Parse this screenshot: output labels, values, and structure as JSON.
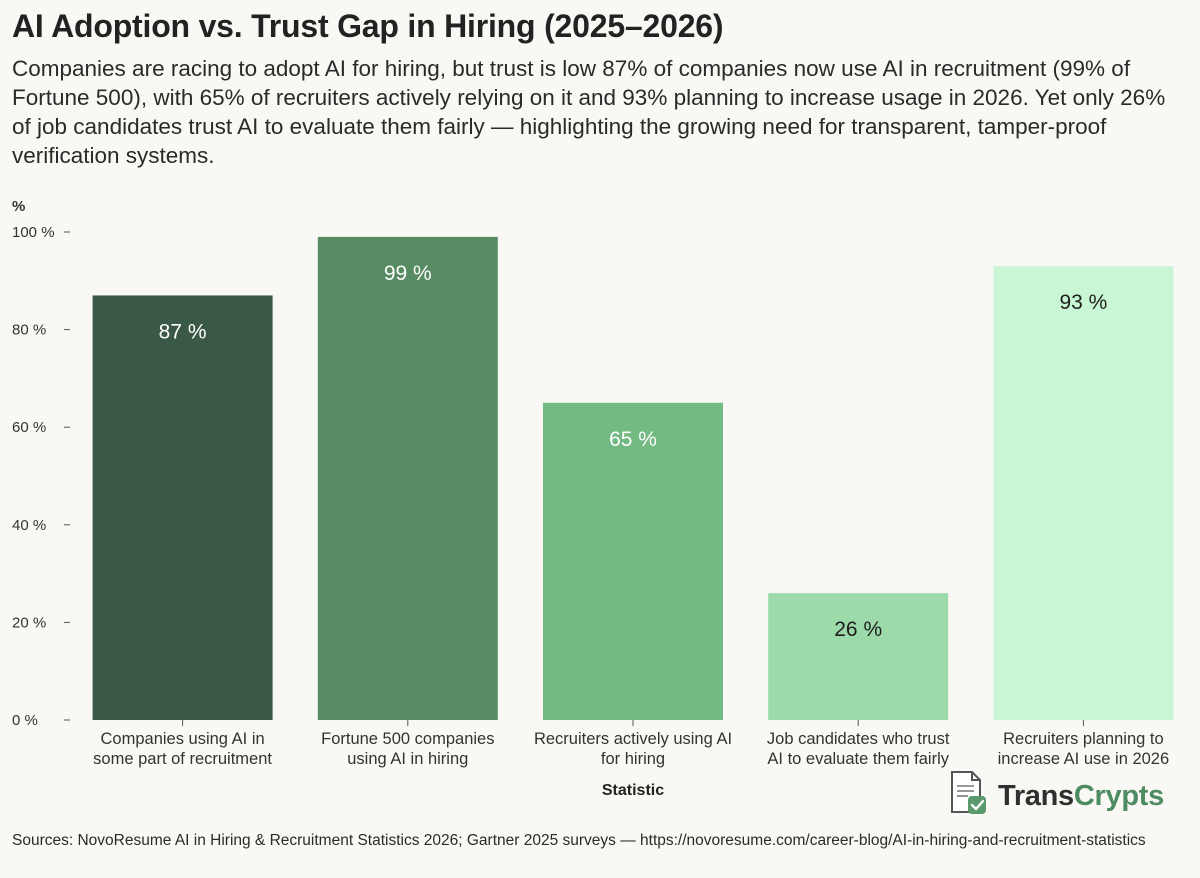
{
  "header": {
    "title": "AI Adoption vs. Trust Gap in Hiring (2025–2026)",
    "subtitle": "Companies are racing to adopt AI for hiring, but trust is low 87% of companies now use AI in recruitment (99% of Fortune 500), with 65% of recruiters actively relying on it and 93% planning to increase usage in 2026. Yet only 26% of job candidates trust AI to evaluate them fairly — highlighting the growing need for transparent, tamper-proof verification systems."
  },
  "chart_data": {
    "type": "bar",
    "ylabel": "%",
    "xlabel": "Statistic",
    "ylim": [
      0,
      100
    ],
    "yticks": [
      0,
      20,
      40,
      60,
      80,
      100
    ],
    "ytick_labels": [
      "0 %",
      "20 %",
      "40 %",
      "60 %",
      "80 %",
      "100 %"
    ],
    "grid": false,
    "categories": [
      [
        "Companies using AI in",
        "some part of recruitment"
      ],
      [
        "Fortune 500 companies",
        "using AI in hiring"
      ],
      [
        "Recruiters actively using AI",
        "for hiring"
      ],
      [
        "Job candidates who trust",
        "AI to evaluate them fairly"
      ],
      [
        "Recruiters planning to",
        "increase AI use in 2026"
      ]
    ],
    "values": [
      87,
      99,
      65,
      26,
      93
    ],
    "value_labels": [
      "87 %",
      "99 %",
      "65 %",
      "26 %",
      "93 %"
    ],
    "colors": [
      "#3a5846",
      "#578c62",
      "#72b982",
      "#9cdaaa",
      "#c9f7d6"
    ],
    "label_colors": [
      "#ffffff",
      "#ffffff",
      "#ffffff",
      "#1e1e1e",
      "#1e1e1e"
    ]
  },
  "logo": {
    "brand_part1": "Trans",
    "brand_part2": "Crypts",
    "icon": "document-check-icon"
  },
  "footer": {
    "source": "Sources: NovoResume AI in Hiring & Recruitment Statistics 2026; Gartner 2025 surveys — https://novoresume.com/career-blog/AI-in-hiring-and-recruitment-statistics"
  }
}
